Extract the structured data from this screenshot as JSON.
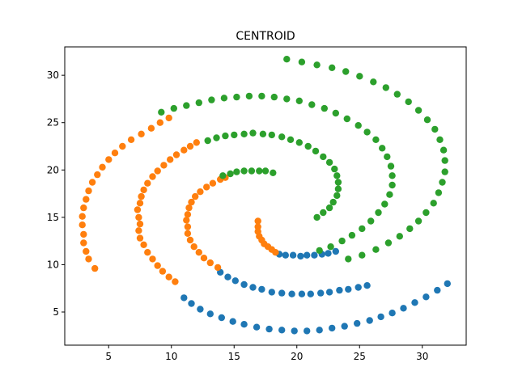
{
  "chart_data": {
    "type": "scatter",
    "title": "CENTROID",
    "xlabel": "",
    "ylabel": "",
    "xlim": [
      1.5,
      33.5
    ],
    "ylim": [
      1.5,
      33.0
    ],
    "xticks": [
      5,
      10,
      15,
      20,
      25,
      30
    ],
    "yticks": [
      5,
      10,
      15,
      20,
      25,
      30
    ],
    "grid": false,
    "legend": "none",
    "series": [
      {
        "color": "#1f77b4",
        "points": [
          [
            32.0,
            8.0
          ],
          [
            31.2,
            7.3
          ],
          [
            30.3,
            6.6
          ],
          [
            29.4,
            6.0
          ],
          [
            28.5,
            5.4
          ],
          [
            27.6,
            4.9
          ],
          [
            26.7,
            4.5
          ],
          [
            25.8,
            4.1
          ],
          [
            24.8,
            3.8
          ],
          [
            23.8,
            3.5
          ],
          [
            22.8,
            3.3
          ],
          [
            21.8,
            3.1
          ],
          [
            20.8,
            3.0
          ],
          [
            19.8,
            3.0
          ],
          [
            18.8,
            3.1
          ],
          [
            17.8,
            3.2
          ],
          [
            16.8,
            3.4
          ],
          [
            15.8,
            3.7
          ],
          [
            14.9,
            4.0
          ],
          [
            14.0,
            4.4
          ],
          [
            13.1,
            4.8
          ],
          [
            12.3,
            5.3
          ],
          [
            11.6,
            5.9
          ],
          [
            11.0,
            6.5
          ],
          [
            25.6,
            7.8
          ],
          [
            24.9,
            7.6
          ],
          [
            24.1,
            7.4
          ],
          [
            23.4,
            7.3
          ],
          [
            22.6,
            7.1
          ],
          [
            21.9,
            7.0
          ],
          [
            21.1,
            6.9
          ],
          [
            20.4,
            6.9
          ],
          [
            19.6,
            6.9
          ],
          [
            18.8,
            7.0
          ],
          [
            18.0,
            7.1
          ],
          [
            17.2,
            7.4
          ],
          [
            16.5,
            7.6
          ],
          [
            15.8,
            7.9
          ],
          [
            15.1,
            8.3
          ],
          [
            14.5,
            8.7
          ],
          [
            13.9,
            9.2
          ],
          [
            23.1,
            11.4
          ],
          [
            22.5,
            11.2
          ],
          [
            22.0,
            11.1
          ],
          [
            21.4,
            11.0
          ],
          [
            20.8,
            11.0
          ],
          [
            20.3,
            10.9
          ],
          [
            19.7,
            11.0
          ],
          [
            19.1,
            11.0
          ],
          [
            18.6,
            11.1
          ]
        ]
      },
      {
        "color": "#ff7f0e",
        "points": [
          [
            3.9,
            9.6
          ],
          [
            3.4,
            10.6
          ],
          [
            3.2,
            11.4
          ],
          [
            3.0,
            12.3
          ],
          [
            3.0,
            13.2
          ],
          [
            2.9,
            14.2
          ],
          [
            2.9,
            15.1
          ],
          [
            3.0,
            16.0
          ],
          [
            3.2,
            16.9
          ],
          [
            3.4,
            17.8
          ],
          [
            3.7,
            18.7
          ],
          [
            4.1,
            19.5
          ],
          [
            4.5,
            20.3
          ],
          [
            5.0,
            21.1
          ],
          [
            5.5,
            21.8
          ],
          [
            6.1,
            22.5
          ],
          [
            6.8,
            23.2
          ],
          [
            7.6,
            23.8
          ],
          [
            8.4,
            24.4
          ],
          [
            9.1,
            25.0
          ],
          [
            9.8,
            25.5
          ],
          [
            7.5,
            14.3
          ],
          [
            7.4,
            15.0
          ],
          [
            7.3,
            15.8
          ],
          [
            7.5,
            16.5
          ],
          [
            7.6,
            17.2
          ],
          [
            7.8,
            17.9
          ],
          [
            8.1,
            18.6
          ],
          [
            8.5,
            19.3
          ],
          [
            8.9,
            19.9
          ],
          [
            9.4,
            20.5
          ],
          [
            9.9,
            21.1
          ],
          [
            10.4,
            21.6
          ],
          [
            11.0,
            22.1
          ],
          [
            11.5,
            22.5
          ],
          [
            12.0,
            22.9
          ],
          [
            7.4,
            13.6
          ],
          [
            7.5,
            12.8
          ],
          [
            7.8,
            12.1
          ],
          [
            8.1,
            11.3
          ],
          [
            8.5,
            10.6
          ],
          [
            8.9,
            9.9
          ],
          [
            9.3,
            9.3
          ],
          [
            9.8,
            8.7
          ],
          [
            10.3,
            8.2
          ],
          [
            11.3,
            14.0
          ],
          [
            11.2,
            14.7
          ],
          [
            11.3,
            15.3
          ],
          [
            11.4,
            16.0
          ],
          [
            11.6,
            16.6
          ],
          [
            11.9,
            17.2
          ],
          [
            12.3,
            17.7
          ],
          [
            12.8,
            18.2
          ],
          [
            13.3,
            18.6
          ],
          [
            13.9,
            19.0
          ],
          [
            14.3,
            19.2
          ],
          [
            11.3,
            13.3
          ],
          [
            11.5,
            12.6
          ],
          [
            11.8,
            11.9
          ],
          [
            12.2,
            11.3
          ],
          [
            12.6,
            10.7
          ],
          [
            13.1,
            10.2
          ],
          [
            13.7,
            9.7
          ],
          [
            16.9,
            14.6
          ],
          [
            16.9,
            14.0
          ],
          [
            16.9,
            13.5
          ],
          [
            17.0,
            13.0
          ],
          [
            17.2,
            12.6
          ],
          [
            17.4,
            12.2
          ],
          [
            17.7,
            11.9
          ],
          [
            18.0,
            11.6
          ],
          [
            18.3,
            11.3
          ]
        ]
      },
      {
        "color": "#2ca02c",
        "points": [
          [
            19.2,
            31.7
          ],
          [
            20.4,
            31.4
          ],
          [
            21.6,
            31.1
          ],
          [
            22.8,
            30.8
          ],
          [
            23.9,
            30.4
          ],
          [
            25.0,
            29.9
          ],
          [
            26.1,
            29.3
          ],
          [
            27.1,
            28.7
          ],
          [
            28.0,
            28.0
          ],
          [
            28.9,
            27.2
          ],
          [
            29.7,
            26.3
          ],
          [
            30.4,
            25.3
          ],
          [
            31.0,
            24.3
          ],
          [
            31.4,
            23.2
          ],
          [
            31.7,
            22.1
          ],
          [
            31.8,
            21.0
          ],
          [
            31.8,
            19.8
          ],
          [
            31.6,
            18.7
          ],
          [
            31.3,
            17.6
          ],
          [
            30.9,
            16.5
          ],
          [
            30.3,
            15.5
          ],
          [
            29.7,
            14.6
          ],
          [
            29.0,
            13.8
          ],
          [
            28.2,
            13.0
          ],
          [
            27.3,
            12.3
          ],
          [
            26.3,
            11.6
          ],
          [
            25.2,
            11.0
          ],
          [
            24.1,
            10.6
          ],
          [
            9.2,
            26.1
          ],
          [
            10.2,
            26.5
          ],
          [
            11.2,
            26.8
          ],
          [
            12.2,
            27.1
          ],
          [
            13.2,
            27.4
          ],
          [
            14.2,
            27.6
          ],
          [
            15.2,
            27.7
          ],
          [
            16.2,
            27.8
          ],
          [
            17.2,
            27.8
          ],
          [
            18.2,
            27.7
          ],
          [
            19.2,
            27.5
          ],
          [
            20.2,
            27.3
          ],
          [
            21.2,
            26.9
          ],
          [
            22.2,
            26.5
          ],
          [
            23.1,
            26.0
          ],
          [
            24.0,
            25.4
          ],
          [
            24.9,
            24.7
          ],
          [
            25.6,
            24.0
          ],
          [
            26.3,
            23.2
          ],
          [
            26.8,
            22.3
          ],
          [
            27.2,
            21.4
          ],
          [
            27.5,
            20.4
          ],
          [
            27.6,
            19.4
          ],
          [
            27.6,
            18.4
          ],
          [
            27.4,
            17.4
          ],
          [
            27.0,
            16.4
          ],
          [
            26.5,
            15.5
          ],
          [
            25.9,
            14.6
          ],
          [
            25.2,
            13.8
          ],
          [
            24.4,
            13.1
          ],
          [
            23.6,
            12.5
          ],
          [
            22.7,
            11.9
          ],
          [
            21.8,
            11.5
          ],
          [
            12.9,
            23.1
          ],
          [
            13.6,
            23.4
          ],
          [
            14.3,
            23.6
          ],
          [
            15.0,
            23.7
          ],
          [
            15.8,
            23.8
          ],
          [
            16.5,
            23.9
          ],
          [
            17.3,
            23.8
          ],
          [
            18.0,
            23.7
          ],
          [
            18.8,
            23.5
          ],
          [
            19.5,
            23.2
          ],
          [
            20.2,
            22.9
          ],
          [
            20.9,
            22.5
          ],
          [
            21.5,
            22.0
          ],
          [
            22.1,
            21.4
          ],
          [
            22.6,
            20.8
          ],
          [
            23.0,
            20.1
          ],
          [
            23.2,
            19.4
          ],
          [
            23.3,
            18.7
          ],
          [
            23.3,
            18.0
          ],
          [
            23.2,
            17.3
          ],
          [
            22.9,
            16.6
          ],
          [
            22.6,
            16.0
          ],
          [
            22.1,
            15.5
          ],
          [
            21.6,
            15.0
          ],
          [
            14.1,
            19.4
          ],
          [
            14.7,
            19.6
          ],
          [
            15.2,
            19.8
          ],
          [
            15.8,
            19.9
          ],
          [
            16.4,
            19.9
          ],
          [
            17.0,
            19.9
          ],
          [
            17.5,
            19.9
          ],
          [
            18.1,
            19.7
          ]
        ]
      }
    ]
  }
}
